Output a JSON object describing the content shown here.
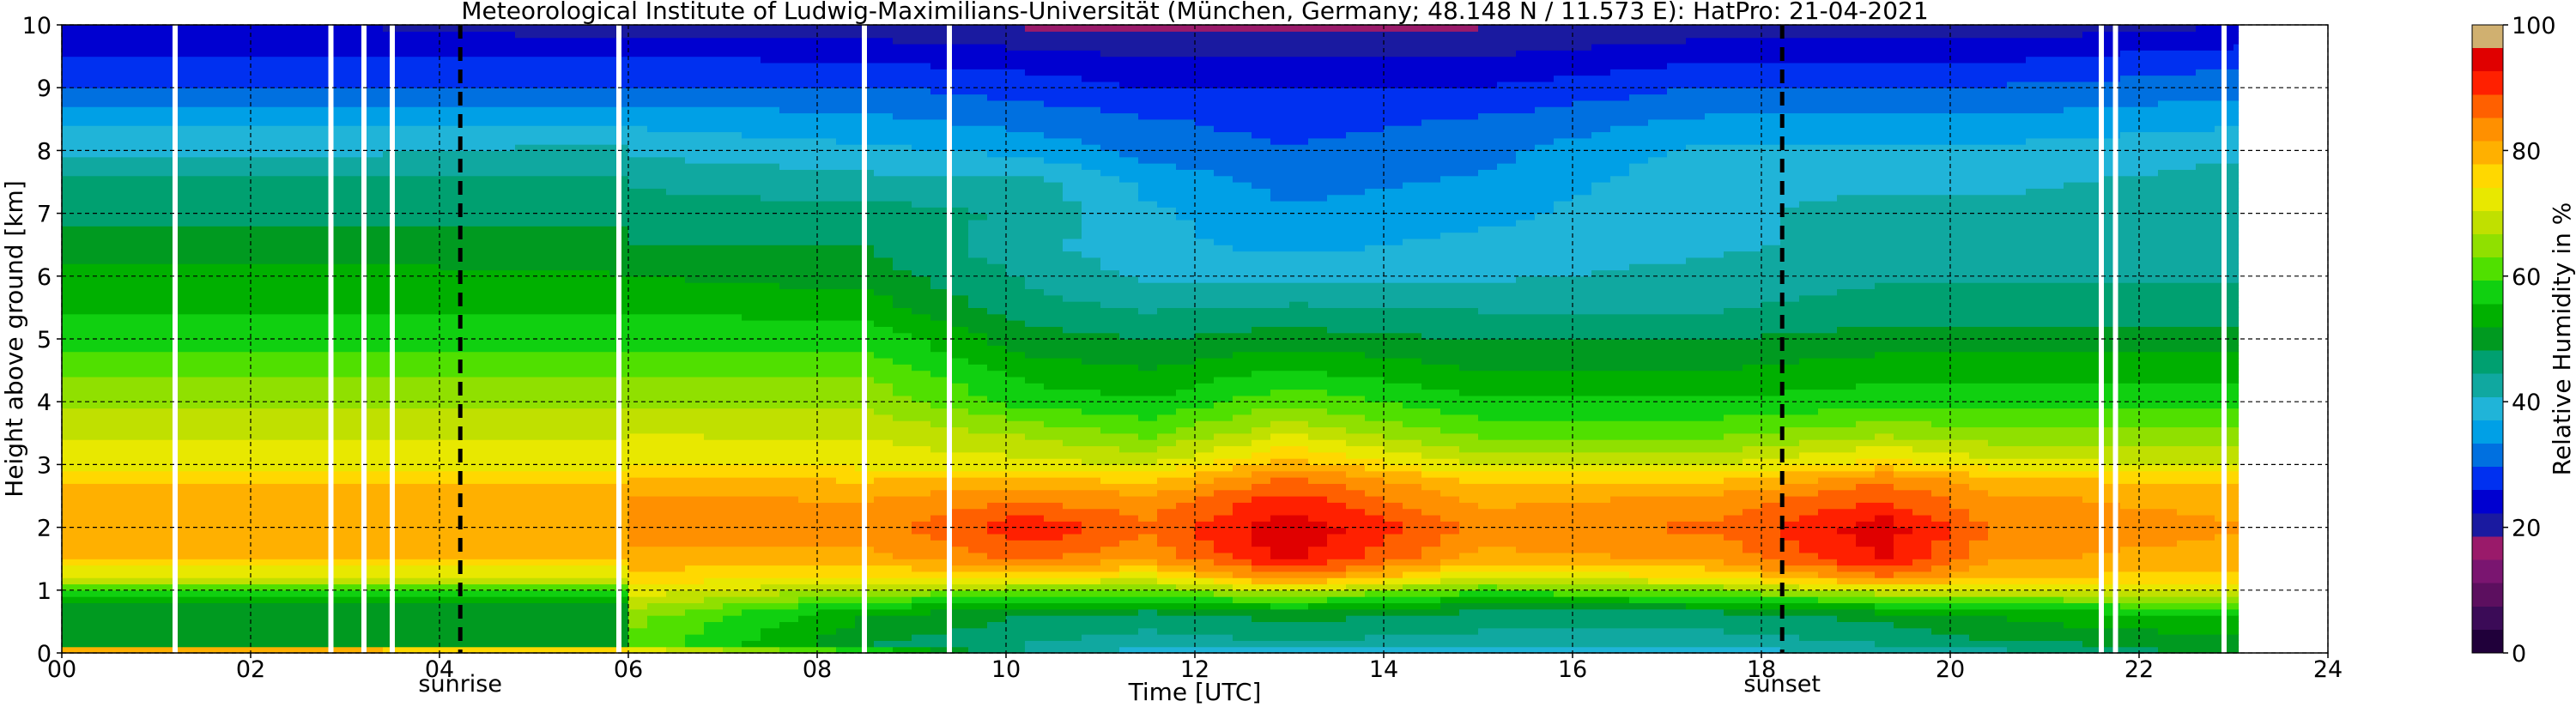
{
  "chart_data": {
    "type": "heatmap",
    "title": "Meteorological Institute of Ludwig-Maximilians-Universität (München, Germany; 48.148 N / 11.573 E):    HatPro: 21-04-2021",
    "xlabel": "Time [UTC]",
    "ylabel": "Height above ground [km]",
    "xlim": [
      0,
      24
    ],
    "ylim": [
      0,
      10
    ],
    "x_ticks": [
      "00",
      "02",
      "04",
      "06",
      "08",
      "10",
      "12",
      "14",
      "16",
      "18",
      "20",
      "22",
      "24"
    ],
    "y_ticks": [
      "0",
      "1",
      "2",
      "3",
      "4",
      "5",
      "6",
      "7",
      "8",
      "9",
      "10"
    ],
    "grid": true,
    "data_end_hour": 23.05,
    "colorbar": {
      "label": "Relative Humidity in %",
      "range": [
        0,
        100
      ],
      "ticks": [
        "0",
        "20",
        "40",
        "60",
        "80",
        "100"
      ],
      "colors": [
        "#20003a",
        "#3b0b57",
        "#5c0f5f",
        "#7a1570",
        "#9a1a6a",
        "#1a1aa0",
        "#0000d0",
        "#0030f0",
        "#0070e0",
        "#00a0e6",
        "#20b4d8",
        "#10a8a0",
        "#00a070",
        "#009a20",
        "#00b000",
        "#10d010",
        "#50e000",
        "#90e000",
        "#c0e000",
        "#e8e800",
        "#ffd800",
        "#ffb000",
        "#ff9000",
        "#ff6000",
        "#ff2000",
        "#e00000",
        "#d0b070"
      ]
    },
    "rh_profile_heights_km": [
      0,
      0.05,
      0.1,
      0.3,
      0.6,
      0.8,
      1.0,
      1.2,
      1.5,
      2.0,
      2.5,
      2.8,
      3.0,
      3.5,
      4.0,
      4.5,
      5.0,
      5.5,
      6.0,
      6.5,
      7.0,
      7.5,
      8.0,
      8.5,
      9.0,
      9.5,
      9.8,
      10.0
    ],
    "rh_profiles": [
      {
        "hour": 0.0,
        "rh": [
          80,
          78,
          52,
          50,
          48,
          50,
          60,
          70,
          78,
          81,
          80,
          76,
          72,
          70,
          66,
          62,
          58,
          55,
          53,
          50,
          47,
          45,
          40,
          36,
          30,
          26,
          24,
          22
        ]
      },
      {
        "hour": 3.0,
        "rh": [
          80,
          78,
          52,
          50,
          48,
          50,
          60,
          70,
          78,
          81,
          80,
          76,
          72,
          70,
          66,
          62,
          58,
          55,
          53,
          50,
          47,
          45,
          40,
          36,
          30,
          26,
          24,
          22
        ]
      },
      {
        "hour": 5.9,
        "rh": [
          80,
          76,
          52,
          50,
          48,
          50,
          60,
          70,
          78,
          81,
          80,
          76,
          72,
          70,
          66,
          62,
          58,
          55,
          52,
          50,
          47,
          45,
          42,
          36,
          30,
          26,
          22,
          20
        ]
      },
      {
        "hour": 6.1,
        "rh": [
          72,
          72,
          62,
          62,
          64,
          68,
          72,
          76,
          80,
          84,
          82,
          78,
          74,
          70,
          66,
          62,
          58,
          55,
          52,
          48,
          46,
          44,
          40,
          36,
          30,
          26,
          22,
          20
        ]
      },
      {
        "hour": 8.5,
        "rh": [
          60,
          58,
          48,
          50,
          52,
          58,
          66,
          74,
          80,
          83,
          81,
          77,
          73,
          70,
          66,
          62,
          58,
          54,
          50,
          48,
          46,
          42,
          38,
          34,
          30,
          25,
          22,
          20
        ]
      },
      {
        "hour": 10.2,
        "rh": [
          46,
          44,
          44,
          46,
          48,
          55,
          64,
          74,
          86,
          92,
          84,
          78,
          72,
          66,
          58,
          54,
          50,
          46,
          44,
          42,
          44,
          42,
          36,
          32,
          28,
          24,
          20,
          18
        ]
      },
      {
        "hour": 11.5,
        "rh": [
          40,
          40,
          42,
          44,
          46,
          54,
          62,
          72,
          82,
          86,
          82,
          76,
          70,
          62,
          56,
          52,
          48,
          44,
          40,
          38,
          38,
          36,
          32,
          30,
          26,
          22,
          20,
          18
        ]
      },
      {
        "hour": 13.0,
        "rh": [
          40,
          40,
          42,
          46,
          50,
          58,
          70,
          84,
          94,
          96,
          90,
          86,
          80,
          70,
          62,
          56,
          50,
          45,
          40,
          36,
          34,
          32,
          30,
          28,
          26,
          22,
          20,
          18
        ]
      },
      {
        "hour": 15.0,
        "rh": [
          40,
          40,
          42,
          44,
          46,
          52,
          60,
          70,
          80,
          84,
          80,
          76,
          70,
          62,
          56,
          52,
          48,
          44,
          40,
          38,
          36,
          34,
          32,
          30,
          26,
          22,
          20,
          18
        ]
      },
      {
        "hour": 17.5,
        "rh": [
          40,
          40,
          42,
          44,
          46,
          54,
          64,
          74,
          82,
          86,
          82,
          76,
          70,
          62,
          56,
          52,
          48,
          44,
          42,
          40,
          40,
          40,
          38,
          34,
          30,
          25,
          22,
          20
        ]
      },
      {
        "hour": 19.3,
        "rh": [
          44,
          42,
          44,
          46,
          50,
          58,
          70,
          84,
          93,
          95,
          88,
          84,
          76,
          66,
          58,
          54,
          50,
          46,
          44,
          42,
          42,
          40,
          38,
          34,
          30,
          25,
          22,
          20
        ]
      },
      {
        "hour": 20.5,
        "rh": [
          44,
          44,
          46,
          50,
          52,
          60,
          70,
          78,
          82,
          84,
          82,
          78,
          72,
          64,
          58,
          54,
          50,
          46,
          44,
          42,
          42,
          40,
          38,
          34,
          30,
          25,
          22,
          20
        ]
      },
      {
        "hour": 23.0,
        "rh": [
          52,
          50,
          50,
          52,
          56,
          62,
          70,
          76,
          80,
          82,
          80,
          76,
          70,
          64,
          58,
          54,
          50,
          46,
          44,
          42,
          42,
          42,
          40,
          36,
          32,
          28,
          24,
          22
        ]
      }
    ],
    "data_gaps_hours": [
      1.2,
      2.85,
      3.2,
      3.5,
      5.9,
      8.5,
      9.4,
      21.6,
      21.75,
      22.9
    ],
    "annotations": [
      {
        "text": "sunrise",
        "hour": 4.22
      },
      {
        "text": "sunset",
        "hour": 18.22
      }
    ]
  }
}
